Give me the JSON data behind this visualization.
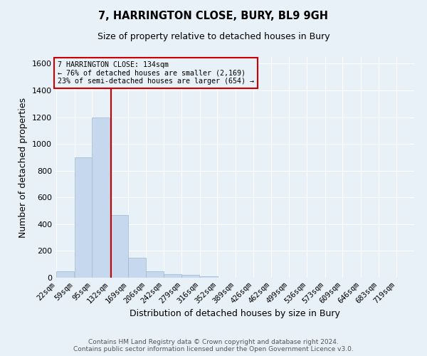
{
  "title1": "7, HARRINGTON CLOSE, BURY, BL9 9GH",
  "title2": "Size of property relative to detached houses in Bury",
  "xlabel": "Distribution of detached houses by size in Bury",
  "ylabel": "Number of detached properties",
  "annotation_line1": "7 HARRINGTON CLOSE: 134sqm",
  "annotation_line2": "← 76% of detached houses are smaller (2,169)",
  "annotation_line3": "23% of semi-detached houses are larger (654) →",
  "property_size": 134,
  "bin_edges": [
    22,
    59,
    95,
    132,
    169,
    206,
    242,
    279,
    316,
    352,
    389,
    426,
    462,
    499,
    536,
    573,
    609,
    646,
    683,
    719,
    756
  ],
  "bar_heights": [
    50,
    900,
    1200,
    470,
    150,
    50,
    25,
    20,
    10,
    0,
    0,
    0,
    0,
    0,
    0,
    0,
    0,
    0,
    0,
    0
  ],
  "bar_color": "#c5d8ed",
  "bar_edgecolor": "#a0b8d0",
  "line_color": "#cc0000",
  "box_edgecolor": "#cc0000",
  "bg_color": "#e8f0f8",
  "ylim": [
    0,
    1650
  ],
  "yticks": [
    0,
    200,
    400,
    600,
    800,
    1000,
    1200,
    1400,
    1600
  ],
  "footer_line1": "Contains HM Land Registry data © Crown copyright and database right 2024.",
  "footer_line2": "Contains public sector information licensed under the Open Government Licence v3.0."
}
